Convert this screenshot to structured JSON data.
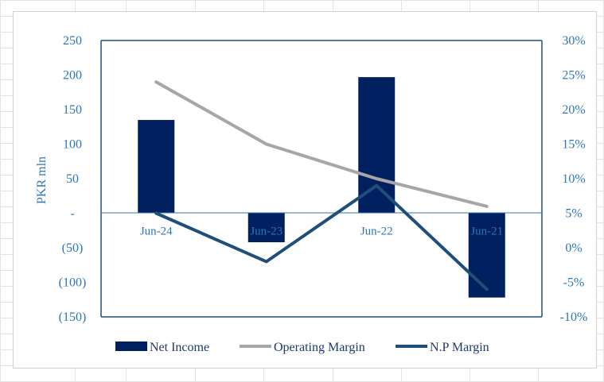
{
  "chart_data": {
    "type": "bar",
    "categories": [
      "Jun-24",
      "Jun-23",
      "Jun-22",
      "Jun-21"
    ],
    "ylabel": "PKR mln",
    "y_left": {
      "lim": [
        -150,
        250
      ],
      "ticks": [
        250,
        200,
        150,
        100,
        50,
        0,
        -50,
        -100,
        -150
      ],
      "tick_labels": [
        "250",
        "200",
        "150",
        "100",
        "50",
        "-",
        "(50)",
        "(100)",
        "(150)"
      ]
    },
    "y_right": {
      "lim": [
        -10,
        30
      ],
      "ticks": [
        30,
        25,
        20,
        15,
        10,
        5,
        0,
        -5,
        -10
      ],
      "tick_labels": [
        "30%",
        "25%",
        "20%",
        "15%",
        "10%",
        "5%",
        "0%",
        "-5%",
        "-10%"
      ]
    },
    "series": [
      {
        "name": "Net Income",
        "type": "bar",
        "axis": "left",
        "values": [
          135,
          -42,
          197,
          -122
        ],
        "color": "#002060"
      },
      {
        "name": "Operating Margin",
        "type": "line",
        "axis": "right",
        "values": [
          24,
          15,
          10,
          6
        ],
        "color": "#a6a6a6"
      },
      {
        "name": "N.P Margin",
        "type": "line",
        "axis": "right",
        "values": [
          5,
          -2,
          9,
          -6
        ],
        "color": "#1f4e79"
      }
    ],
    "legend": "bottom",
    "grid": false
  }
}
